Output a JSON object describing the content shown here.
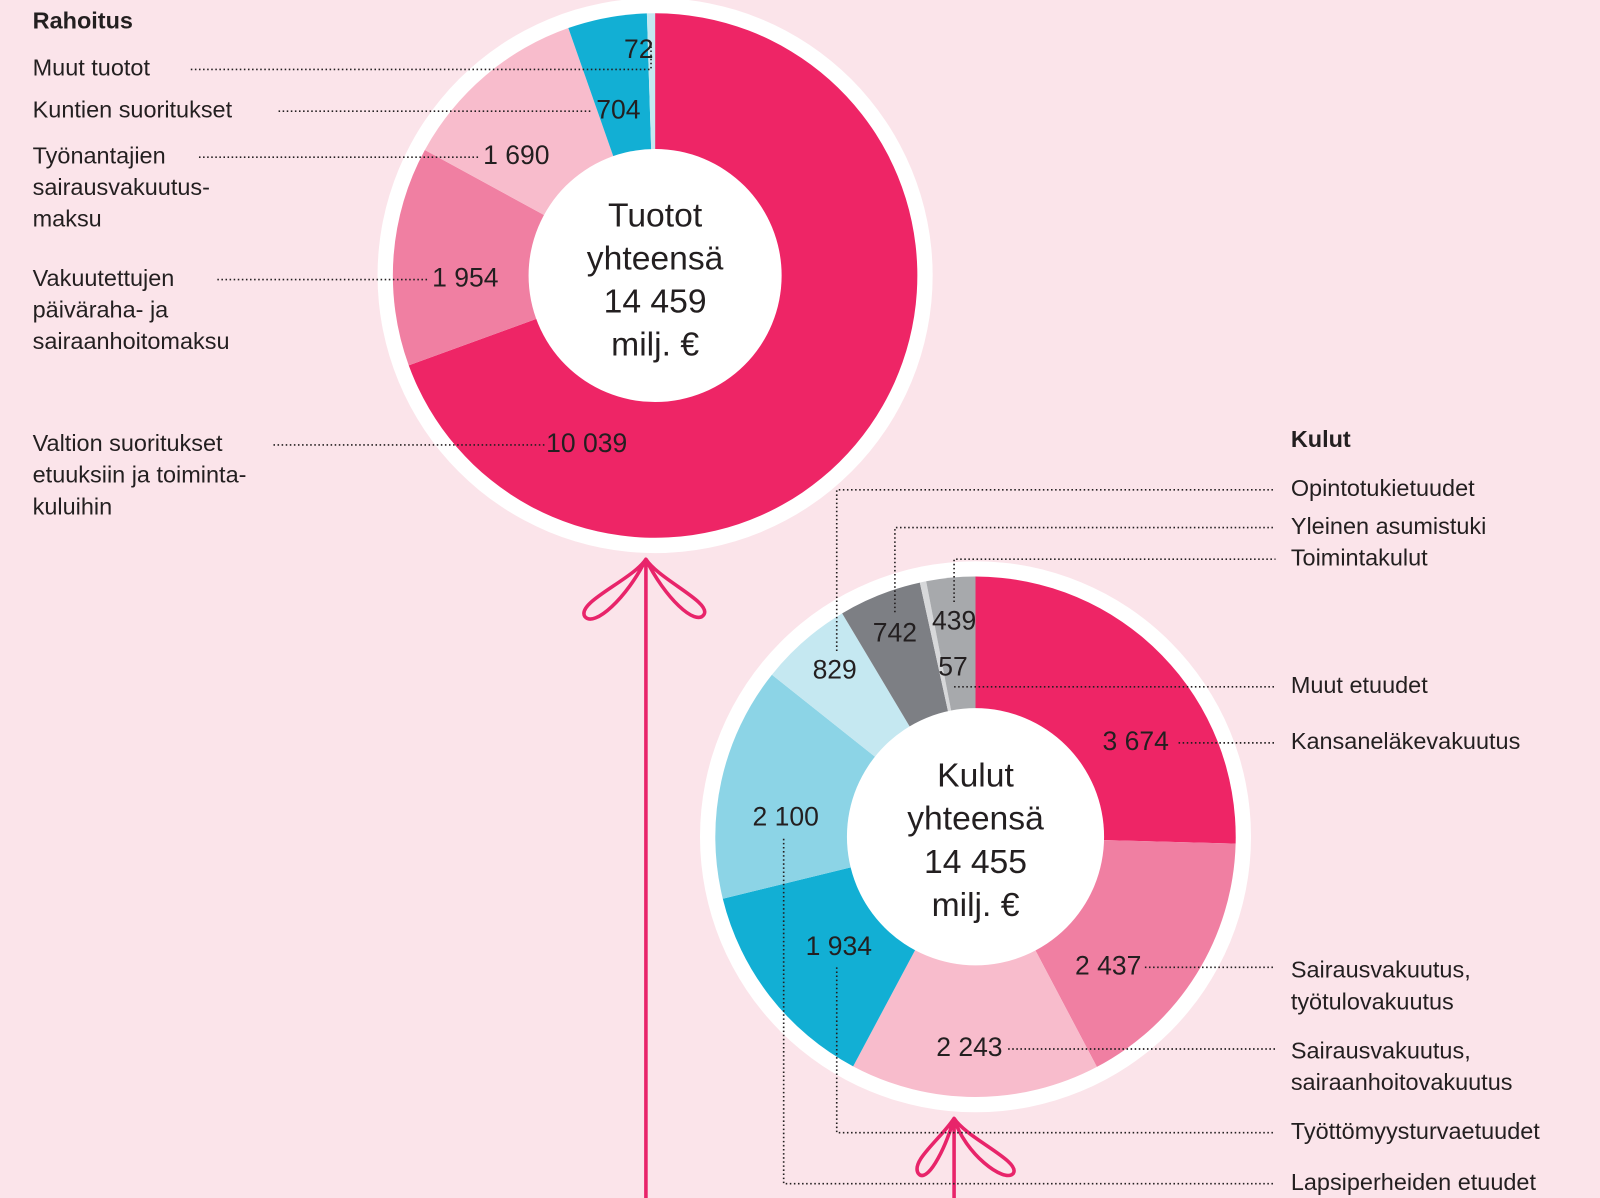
{
  "chart_data": [
    {
      "type": "donut",
      "title": "Rahoitus",
      "center_text": [
        "Tuotot",
        "yhteensä",
        "14 459",
        "milj. €"
      ],
      "categories": [
        [
          "Valtion suoritukset",
          "etuuksiin ja toiminta-",
          "kuluihin"
        ],
        [
          "Vakuutettujen",
          "päiväraha- ja",
          "sairaanhoitomaksu"
        ],
        [
          "Työnantajien",
          "sairausvakuutus-",
          "maksu"
        ],
        [
          "Kuntien suoritukset"
        ],
        [
          "Muut tuotot"
        ]
      ],
      "values": [
        10039,
        1954,
        1690,
        704,
        72
      ],
      "value_labels": [
        "10 039",
        "1 954",
        "1 690",
        "704",
        "72"
      ],
      "colors": [
        "#ee2566",
        "#f07fa2",
        "#f8bccc",
        "#12afd4",
        "#c5e8f1"
      ]
    },
    {
      "type": "donut",
      "title": "Kulut",
      "center_text": [
        "Kulut",
        "yhteensä",
        "14 455",
        "milj. €"
      ],
      "categories": [
        [
          "Kansaneläkevakuutus"
        ],
        [
          "Sairausvakuutus,",
          "työtulovakuutus"
        ],
        [
          "Sairausvakuutus,",
          "sairaanhoitovakuutus"
        ],
        [
          "Työttömyysturvaetuudet"
        ],
        [
          "Lapsiperheiden etuudet"
        ],
        [
          "Opintotukietuudet"
        ],
        [
          "Yleinen asumistuki"
        ],
        [
          "Muut etuudet"
        ],
        [
          "Toimintakulut"
        ]
      ],
      "values": [
        3674,
        2437,
        2243,
        1934,
        2100,
        829,
        742,
        57,
        439
      ],
      "value_labels": [
        "3 674",
        "2 437",
        "2 243",
        "1 934",
        "2 100",
        "829",
        "742",
        "57",
        "439"
      ],
      "colors": [
        "#ee2566",
        "#f07fa2",
        "#f8bccc",
        "#12afd4",
        "#8cd4e6",
        "#c5e8f1",
        "#7d7f84",
        "#d7d8da",
        "#a7a9ac"
      ]
    }
  ]
}
